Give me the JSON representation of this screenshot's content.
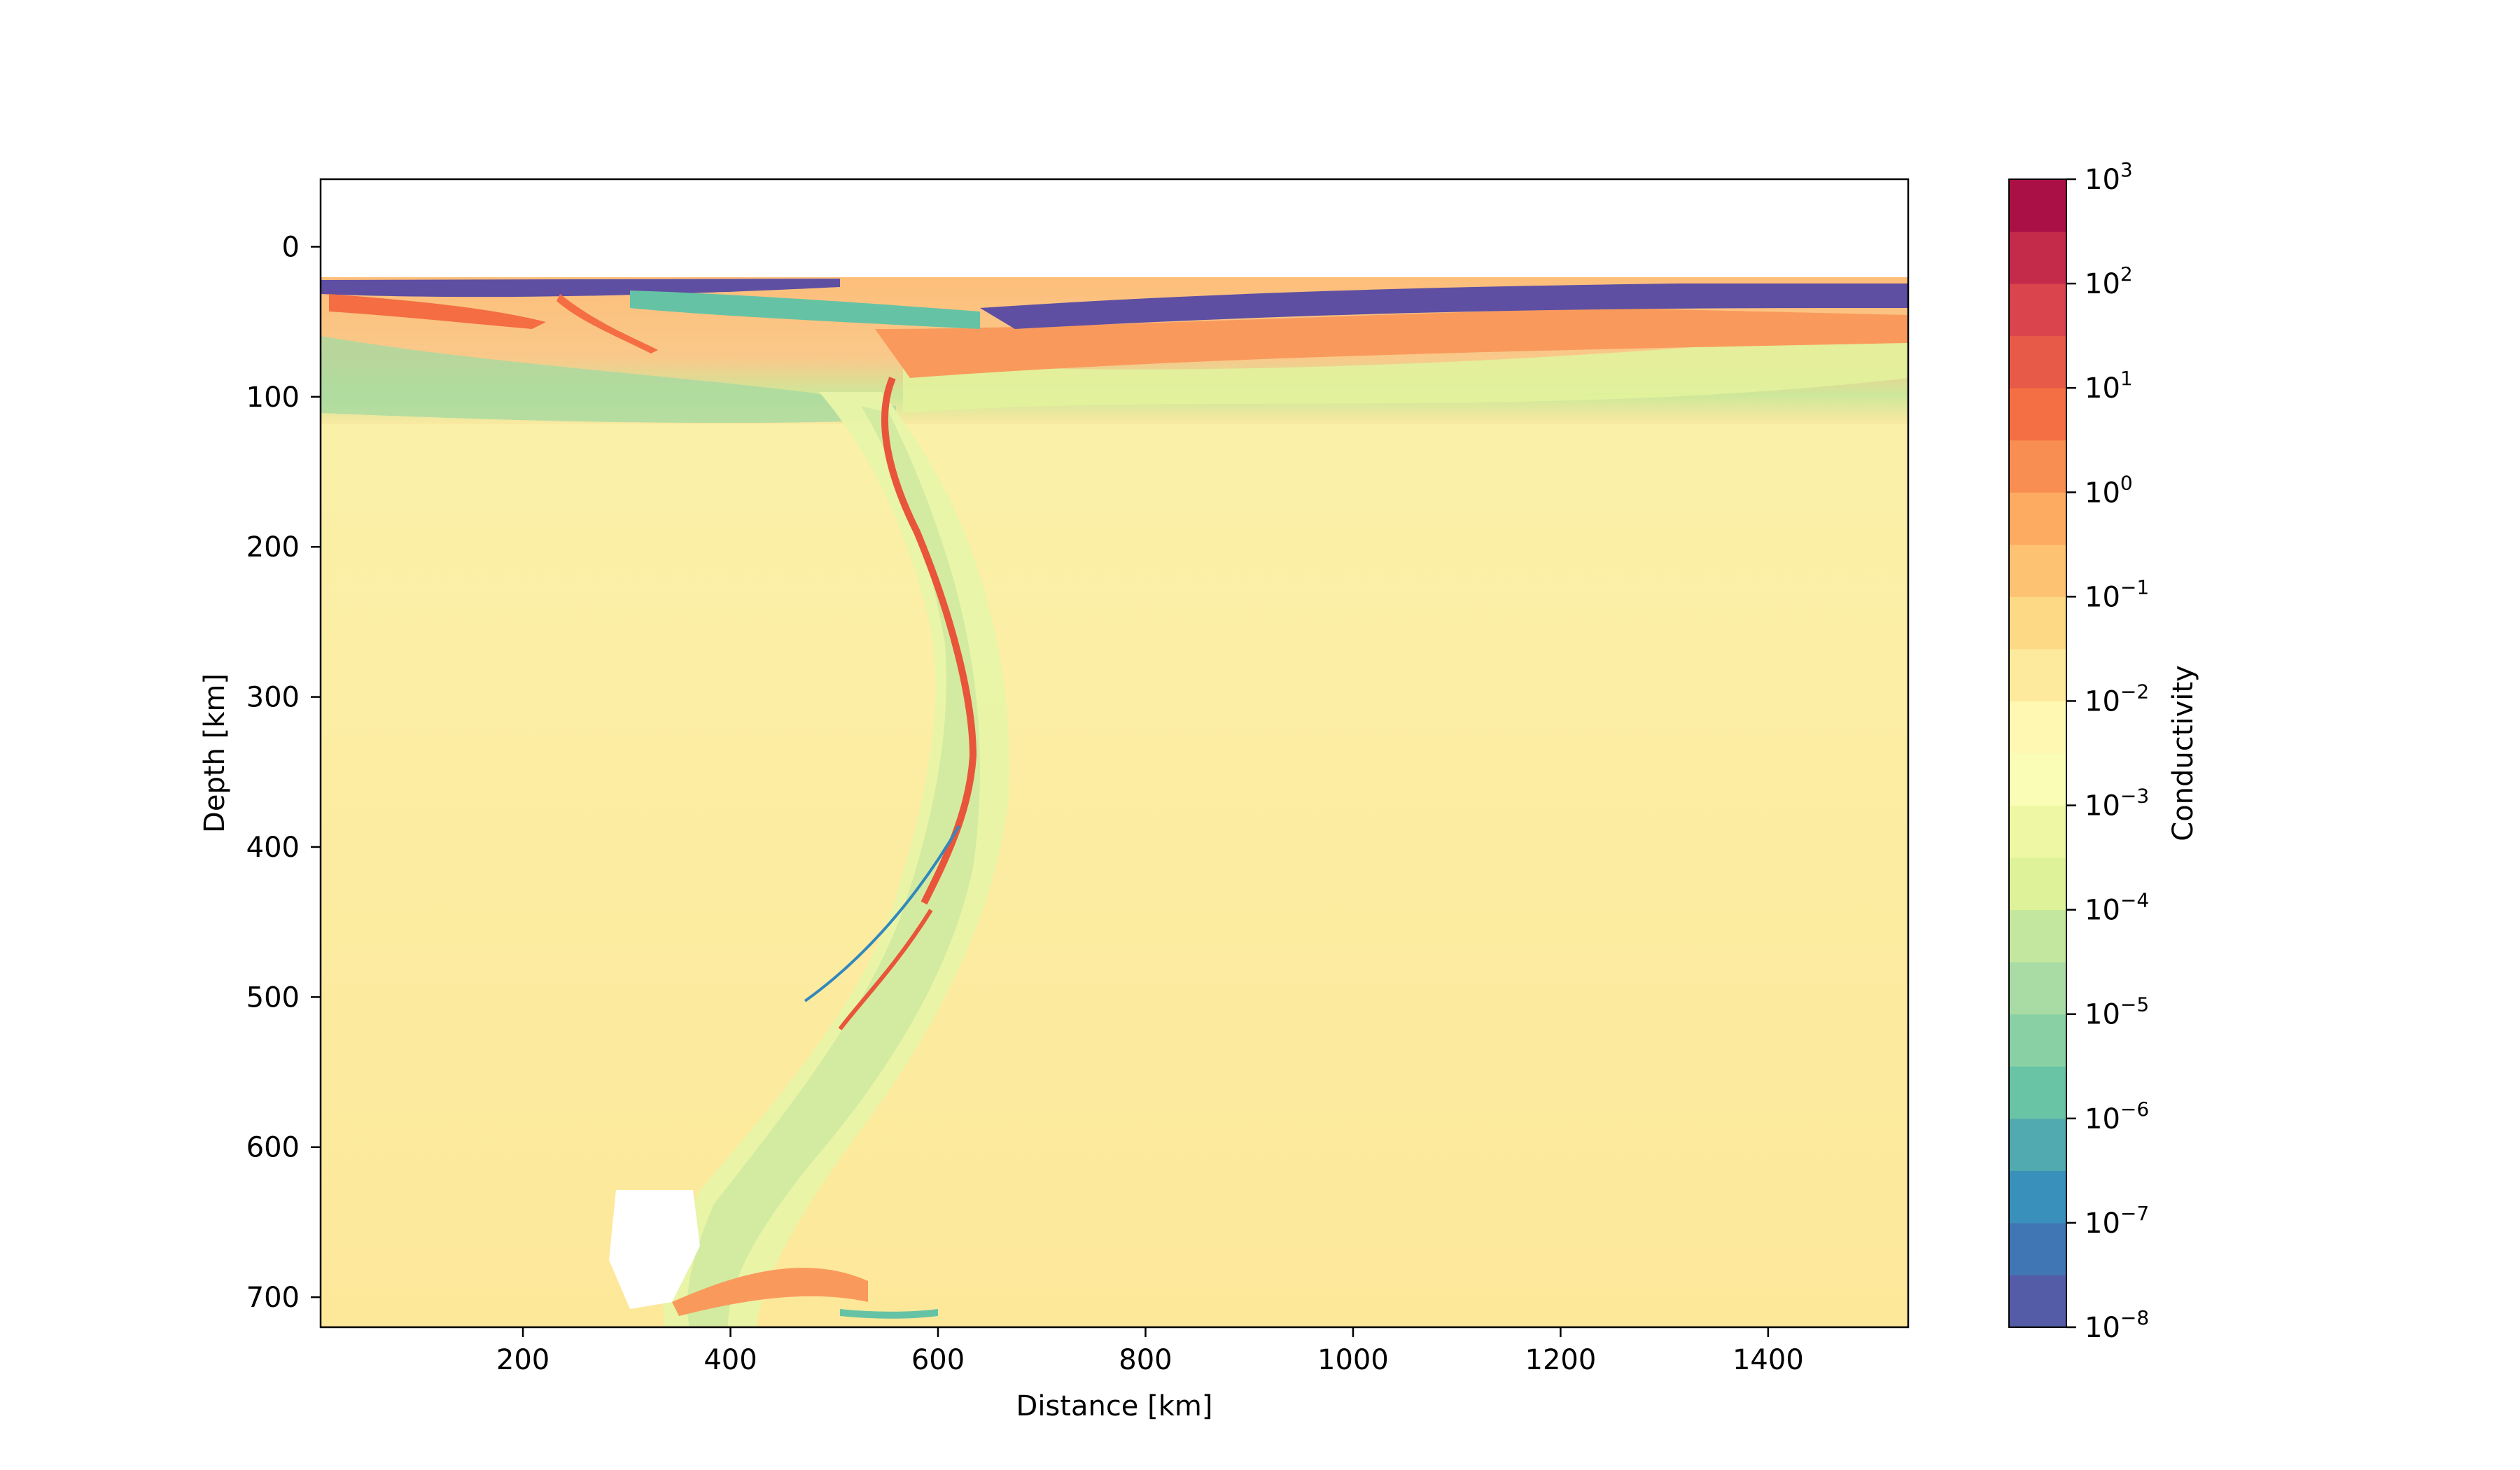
{
  "chart_data": {
    "type": "heatmap",
    "title": "",
    "xlabel": "Distance [km]",
    "ylabel": "Depth [km]",
    "xlim": [
      5,
      1535
    ],
    "ylim": [
      720,
      -45
    ],
    "y_inverted": true,
    "xticks": [
      200,
      400,
      600,
      800,
      1000,
      1200,
      1400
    ],
    "yticks": [
      0,
      100,
      200,
      300,
      400,
      500,
      600,
      700
    ],
    "xtick_labels": [
      "200",
      "400",
      "600",
      "800",
      "1000",
      "1200",
      "1400"
    ],
    "ytick_labels": [
      "0",
      "100",
      "200",
      "300",
      "400",
      "500",
      "600",
      "700"
    ],
    "colorbar": {
      "label": "Conductivity",
      "scale": "log",
      "colormap": "Spectral_r",
      "range": [
        1e-08,
        1000.0
      ],
      "tick_exponents": [
        -8,
        -7,
        -6,
        -5,
        -4,
        -3,
        -2,
        -1,
        0,
        1,
        2,
        3
      ],
      "tick_base": "10",
      "tick_labels": [
        "−8",
        "−7",
        "−6",
        "−5",
        "−4",
        "−3",
        "−2",
        "−1",
        "0",
        "1",
        "2",
        "3"
      ]
    },
    "field_description_values": {
      "surface_top_depth_km": 20,
      "mantle_background_log10": -2,
      "lithosphere_base_depth_km": 100,
      "slab_hinge_x_km": 600,
      "slab_tip_depth_km": 710
    }
  }
}
